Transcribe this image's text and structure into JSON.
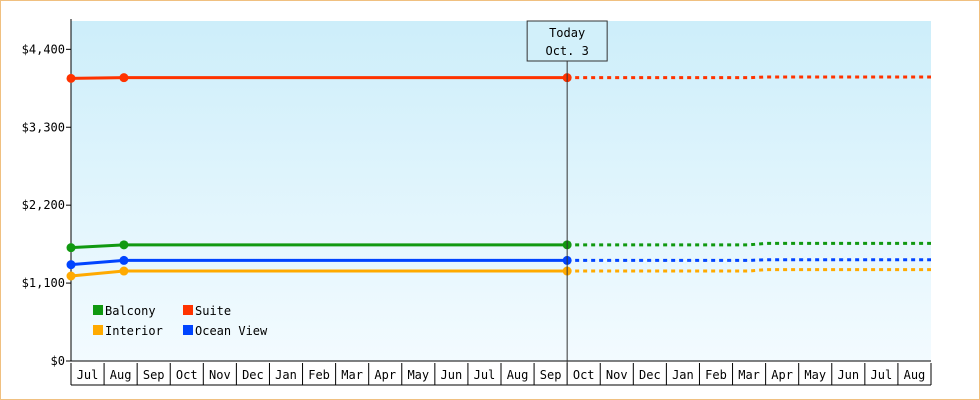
{
  "chart_data": {
    "type": "line",
    "ylim": [
      0,
      4800
    ],
    "yticks": [
      {
        "value": 0,
        "label": "$0"
      },
      {
        "value": 1100,
        "label": "$1,100"
      },
      {
        "value": 2200,
        "label": "$2,200"
      },
      {
        "value": 3300,
        "label": "$3,300"
      },
      {
        "value": 4400,
        "label": "$4,400"
      }
    ],
    "months": [
      "Jul",
      "Aug",
      "Sep",
      "Oct",
      "Nov",
      "Dec",
      "Jan",
      "Feb",
      "Mar",
      "Apr",
      "May",
      "Jun",
      "Jul",
      "Aug",
      "Sep",
      "Oct",
      "Nov",
      "Dec",
      "Jan",
      "Feb",
      "Mar",
      "Apr",
      "May",
      "Jun",
      "Jul",
      "Aug"
    ],
    "today": {
      "line1": "Today",
      "line2": "Oct. 3",
      "month_index": 15
    },
    "series": [
      {
        "name": "Suite",
        "color": "#ff3300",
        "actual": [
          [
            0,
            3990
          ],
          [
            1.6,
            4000
          ],
          [
            15,
            4000
          ]
        ],
        "forecast": [
          [
            15,
            4000
          ],
          [
            20.5,
            4000
          ],
          [
            21,
            4010
          ],
          [
            26,
            4010
          ]
        ]
      },
      {
        "name": "Balcony",
        "color": "#119911",
        "actual": [
          [
            0,
            1600
          ],
          [
            1.6,
            1640
          ],
          [
            15,
            1640
          ]
        ],
        "forecast": [
          [
            15,
            1640
          ],
          [
            20.5,
            1640
          ],
          [
            21,
            1660
          ],
          [
            26,
            1660
          ]
        ]
      },
      {
        "name": "Ocean View",
        "color": "#0044ff",
        "actual": [
          [
            0,
            1360
          ],
          [
            1.6,
            1420
          ],
          [
            15,
            1420
          ]
        ],
        "forecast": [
          [
            15,
            1420
          ],
          [
            20.5,
            1420
          ],
          [
            21,
            1430
          ],
          [
            26,
            1430
          ]
        ]
      },
      {
        "name": "Interior",
        "color": "#ffaa00",
        "actual": [
          [
            0,
            1200
          ],
          [
            1.6,
            1270
          ],
          [
            15,
            1270
          ]
        ],
        "forecast": [
          [
            15,
            1270
          ],
          [
            20.5,
            1270
          ],
          [
            21,
            1290
          ],
          [
            26,
            1290
          ]
        ]
      }
    ],
    "legend": [
      {
        "name": "Balcony",
        "color": "#119911"
      },
      {
        "name": "Suite",
        "color": "#ff3300"
      },
      {
        "name": "Interior",
        "color": "#ffaa00"
      },
      {
        "name": "Ocean View",
        "color": "#0044ff"
      }
    ],
    "legend_position": "bottom-left",
    "grid": false
  }
}
